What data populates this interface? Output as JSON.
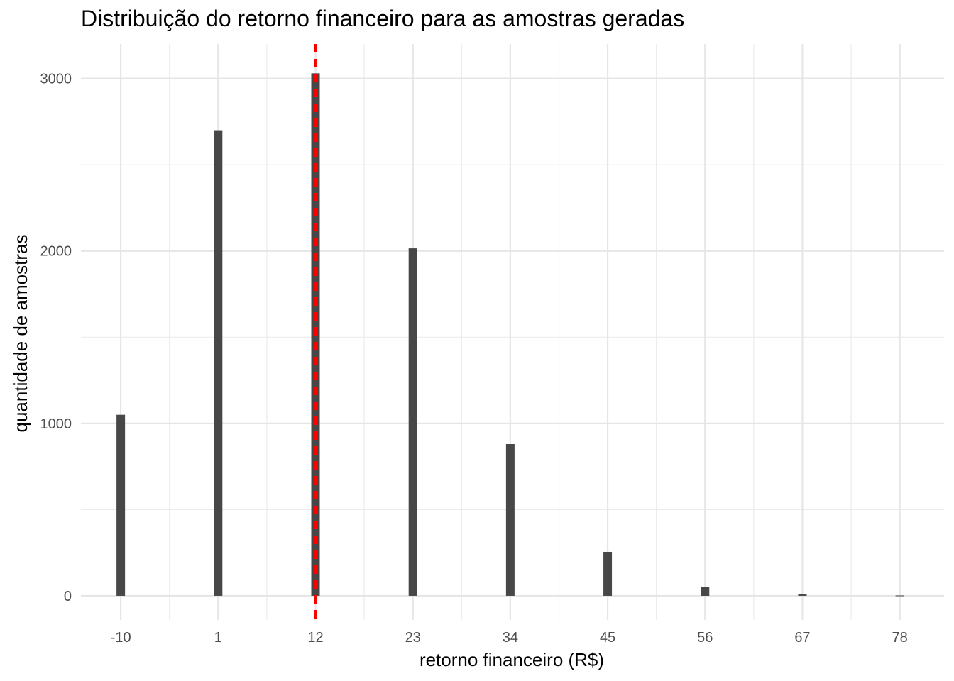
{
  "chart_data": {
    "type": "bar",
    "title": "Distribuição do retorno financeiro para as amostras geradas",
    "xlabel": "retorno financeiro (R$)",
    "ylabel": "quantidade de amostras",
    "x": [
      -10,
      1,
      12,
      23,
      34,
      45,
      56,
      67,
      78
    ],
    "values": [
      1050,
      2700,
      3030,
      2015,
      880,
      255,
      50,
      8,
      2
    ],
    "x_ticks": [
      "-10",
      "1",
      "12",
      "23",
      "34",
      "45",
      "56",
      "67",
      "78"
    ],
    "y_ticks": [
      "0",
      "1000",
      "2000",
      "3000"
    ],
    "xlim": [
      -14.5,
      83
    ],
    "ylim": [
      -140,
      3200
    ],
    "grid": true,
    "bar_color": "#474747",
    "reference_line": {
      "x": 12,
      "style": "dashed",
      "color": "#ff0000"
    }
  }
}
